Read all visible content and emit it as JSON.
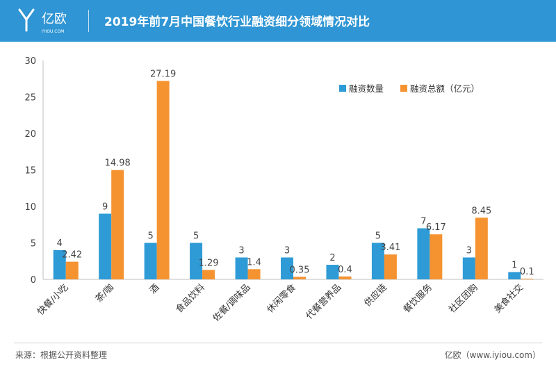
{
  "header": {
    "logo_text": "亿欧",
    "logo_sub": "IYIOU.COM",
    "title": "2019年前7月中国餐饮行业融资细分领域情况对比"
  },
  "footer": {
    "source": "来源：根据公开资料整理",
    "credit": "亿欧（www.iyiou.com）"
  },
  "colors": {
    "header_bg": "#2f95d4",
    "series_count": "#2e9bd6",
    "series_amount": "#f59331"
  },
  "chart_data": {
    "type": "bar",
    "title": "",
    "xlabel": "",
    "ylabel": "",
    "ylim": [
      0,
      30
    ],
    "yticks": [
      0,
      5,
      10,
      15,
      20,
      25,
      30
    ],
    "grid": false,
    "legend_position": "top-right",
    "categories": [
      "快餐/小吃",
      "茶/咖",
      "酒",
      "食品饮料",
      "佐餐/调味品",
      "休闲零食",
      "代餐营养品",
      "供应链",
      "餐饮服务",
      "社区团购",
      "美食社交"
    ],
    "series": [
      {
        "name": "融资数量",
        "color": "#2e9bd6",
        "values": [
          4,
          9,
          5,
          5,
          3,
          3,
          2,
          5,
          7,
          3,
          1
        ],
        "labels": [
          "4",
          "9",
          "5",
          "5",
          "3",
          "3",
          "2",
          "5",
          "7",
          "3",
          "1"
        ]
      },
      {
        "name": "融资总额（亿元）",
        "color": "#f59331",
        "values": [
          2.42,
          14.98,
          27.19,
          1.29,
          1.4,
          0.35,
          0.4,
          3.41,
          6.17,
          8.45,
          0.1
        ],
        "labels": [
          "2.42",
          "14.98",
          "27.19",
          "1.29",
          "1.4",
          "0.35",
          "0.4",
          "3.41",
          "6.17",
          "8.45",
          "0.1"
        ]
      }
    ]
  }
}
